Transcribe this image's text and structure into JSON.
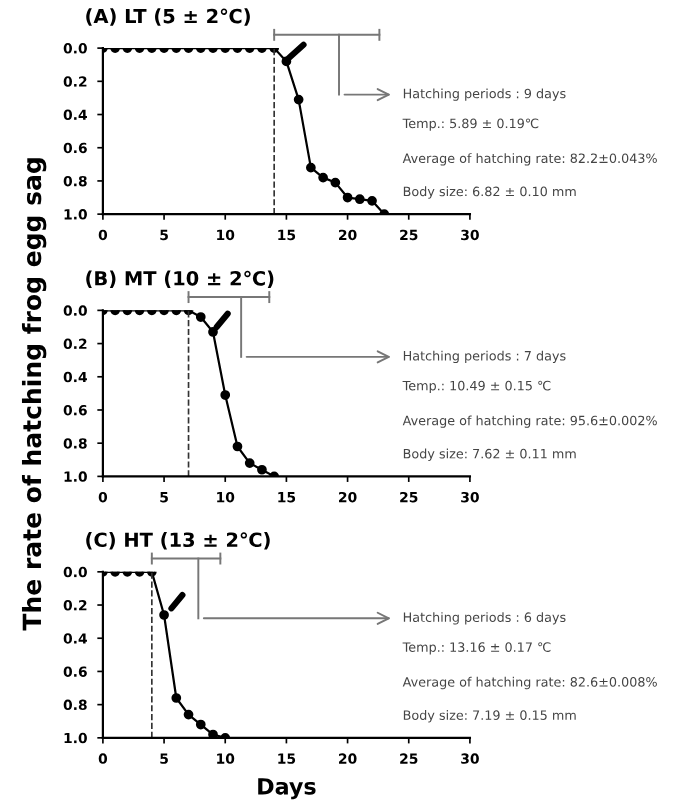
{
  "chart_data": [
    {
      "type": "line",
      "title": "(A) LT (5 ± 2℃)",
      "x": [
        0,
        1,
        2,
        3,
        4,
        5,
        6,
        7,
        8,
        9,
        10,
        11,
        12,
        13,
        14,
        15,
        16,
        17,
        18,
        19,
        20,
        21,
        22,
        23
      ],
      "series": [
        {
          "color": "#000000",
          "values": [
            0,
            0,
            0,
            0,
            0,
            0,
            0,
            0,
            0,
            0,
            0,
            0,
            0,
            0,
            0,
            0.08,
            0.31,
            0.72,
            0.78,
            0.81,
            0.9,
            0.91,
            0.92,
            1.0
          ]
        }
      ],
      "xlim": [
        0,
        30
      ],
      "xticks": [
        0,
        5,
        10,
        15,
        20,
        25,
        30
      ],
      "ylim": [
        1.0,
        0.0
      ],
      "yticks": [
        {
          "value": 0,
          "label": "0.0"
        },
        {
          "value": 0.2,
          "label": "0.2"
        },
        {
          "value": 0.4,
          "label": "0.4"
        },
        {
          "value": 0.6,
          "label": "0.6"
        },
        {
          "value": 0.8,
          "label": "0.8"
        },
        {
          "value": 1,
          "label": "1.0"
        }
      ],
      "ref_lines": [
        {
          "axis": "x",
          "value": 14,
          "line_style": "dashed"
        }
      ],
      "marker": "circle",
      "line_style": "solid",
      "grid": false,
      "annotations": [
        "Hatching periods : 9 days",
        "Temp.: 5.89 ± 0.19℃",
        "Average of hatching rate: 82.2±0.043%",
        "Body size: 6.82 ± 0.10 mm"
      ]
    },
    {
      "type": "line",
      "title": "(B) MT (10 ± 2℃)",
      "ylabel": "The rate of hatching frog egg sag",
      "x": [
        0,
        1,
        2,
        3,
        4,
        5,
        6,
        7,
        8,
        9,
        10,
        11,
        12,
        13,
        14
      ],
      "series": [
        {
          "color": "#000000",
          "values": [
            0,
            0,
            0,
            0,
            0,
            0,
            0,
            0,
            0.04,
            0.13,
            0.51,
            0.82,
            0.92,
            0.96,
            1.0
          ]
        }
      ],
      "xlim": [
        0,
        30
      ],
      "xticks": [
        0,
        5,
        10,
        15,
        20,
        25,
        30
      ],
      "ylim": [
        1.0,
        0.0
      ],
      "yticks": [
        {
          "value": 0,
          "label": "0.0"
        },
        {
          "value": 0.2,
          "label": "0.2"
        },
        {
          "value": 0.4,
          "label": "0.4"
        },
        {
          "value": 0.6,
          "label": "0.6"
        },
        {
          "value": 0.8,
          "label": "0.8"
        },
        {
          "value": 1,
          "label": "1.0"
        }
      ],
      "ref_lines": [
        {
          "axis": "x",
          "value": 7,
          "line_style": "dashed"
        }
      ],
      "marker": "circle",
      "line_style": "solid",
      "grid": false,
      "annotations": [
        "Hatching periods : 7 days",
        "Temp.: 10.49 ± 0.15 ℃",
        "Average of hatching rate: 95.6±0.002%",
        "Body size: 7.62 ± 0.11 mm"
      ]
    },
    {
      "type": "line",
      "title": "(C) HT (13 ± 2℃)",
      "xlabel": "Days",
      "x": [
        0,
        1,
        2,
        3,
        4,
        5,
        6,
        7,
        8,
        9,
        10
      ],
      "series": [
        {
          "color": "#000000",
          "values": [
            0,
            0,
            0,
            0,
            0,
            0.26,
            0.76,
            0.86,
            0.92,
            0.98,
            1.0
          ]
        }
      ],
      "xlim": [
        0,
        30
      ],
      "xticks": [
        0,
        5,
        10,
        15,
        20,
        25,
        30
      ],
      "ylim": [
        1.0,
        0.0
      ],
      "yticks": [
        {
          "value": 0,
          "label": "0.0"
        },
        {
          "value": 0.2,
          "label": "0.2"
        },
        {
          "value": 0.4,
          "label": "0.4"
        },
        {
          "value": 0.6,
          "label": "0.6"
        },
        {
          "value": 0.8,
          "label": "0.8"
        },
        {
          "value": 1,
          "label": "1.0"
        }
      ],
      "ref_lines": [
        {
          "axis": "x",
          "value": 4,
          "line_style": "dashed"
        }
      ],
      "marker": "circle",
      "line_style": "solid",
      "grid": false,
      "annotations": [
        "Hatching periods : 6 days",
        "Temp.: 13.16 ± 0.17 ℃",
        "Average of hatching rate: 82.6±0.008%",
        "Body size: 7.19 ± 0.15 mm"
      ]
    }
  ]
}
